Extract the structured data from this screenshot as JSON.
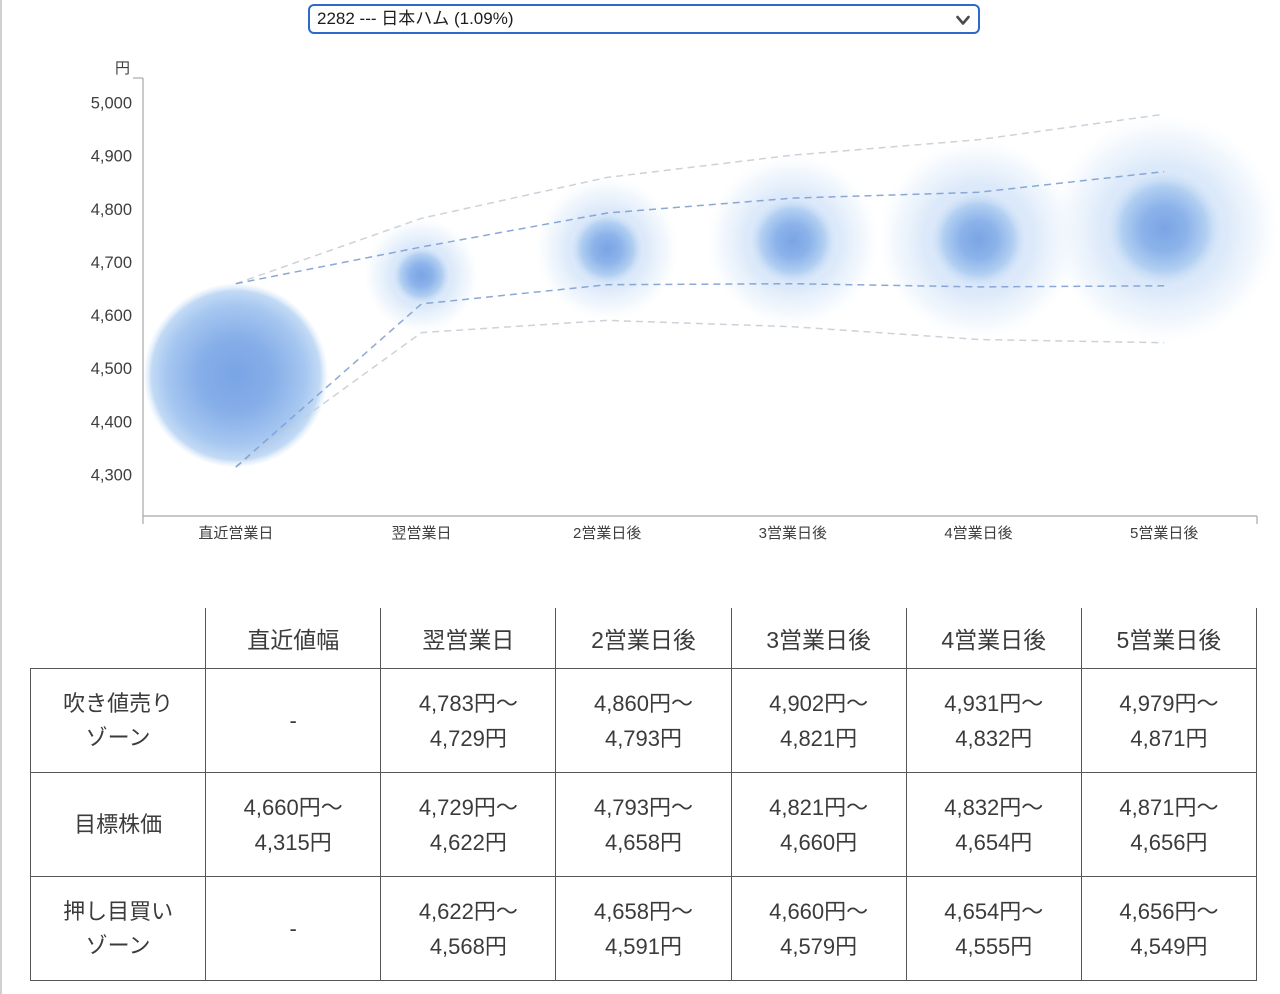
{
  "stock_selector": {
    "value": "2282 --- 日本ハム (1.09%)",
    "border_color": "#2e6ac9",
    "chevron_color": "#4a4a4a"
  },
  "chart_data": {
    "type": "bubble",
    "title": "",
    "y_axis": {
      "unit": "円",
      "min": 4300,
      "max": 5000,
      "ticks": [
        {
          "v": 5000,
          "label": "5,000"
        },
        {
          "v": 4900,
          "label": "4,900"
        },
        {
          "v": 4800,
          "label": "4,800"
        },
        {
          "v": 4700,
          "label": "4,700"
        },
        {
          "v": 4600,
          "label": "4,600"
        },
        {
          "v": 4500,
          "label": "4,500"
        },
        {
          "v": 4400,
          "label": "4,400"
        },
        {
          "v": 4300,
          "label": "4,300"
        }
      ]
    },
    "categories": [
      "直近営業日",
      "翌営業日",
      "2営業日後",
      "3営業日後",
      "4営業日後",
      "5営業日後"
    ],
    "lines": {
      "zone_high": [
        null,
        4783,
        4860,
        4902,
        4931,
        4979
      ],
      "target_high": [
        4660,
        4729,
        4793,
        4821,
        4832,
        4871
      ],
      "target_low": [
        4315,
        4622,
        4658,
        4660,
        4654,
        4656
      ],
      "zone_low": [
        null,
        4568,
        4591,
        4579,
        4555,
        4549
      ]
    },
    "grid": false,
    "legend": false,
    "colors": {
      "axis": "#a8a8a8",
      "target_dash_line": "#7e9ed2",
      "zone_dash_line": "#c7cdd6",
      "bubble_center": "#79a5e5",
      "bubble_mid": "#8cb3ea",
      "bubble_rim": "#c2daf5",
      "halo": "#d6e5f9"
    }
  },
  "table": {
    "headers": [
      "",
      "直近値幅",
      "翌営業日",
      "2営業日後",
      "3営業日後",
      "4営業日後",
      "5営業日後"
    ],
    "rows": [
      {
        "label_lines": [
          "吹き値売り",
          "ゾーン"
        ],
        "cells": [
          [
            "-"
          ],
          [
            "4,783円〜",
            "4,729円"
          ],
          [
            "4,860円〜",
            "4,793円"
          ],
          [
            "4,902円〜",
            "4,821円"
          ],
          [
            "4,931円〜",
            "4,832円"
          ],
          [
            "4,979円〜",
            "4,871円"
          ]
        ]
      },
      {
        "label_lines": [
          "目標株価"
        ],
        "cells": [
          [
            "4,660円〜",
            "4,315円"
          ],
          [
            "4,729円〜",
            "4,622円"
          ],
          [
            "4,793円〜",
            "4,658円"
          ],
          [
            "4,821円〜",
            "4,660円"
          ],
          [
            "4,832円〜",
            "4,654円"
          ],
          [
            "4,871円〜",
            "4,656円"
          ]
        ]
      },
      {
        "label_lines": [
          "押し目買い",
          "ゾーン"
        ],
        "cells": [
          [
            "-"
          ],
          [
            "4,622円〜",
            "4,568円"
          ],
          [
            "4,658円〜",
            "4,591円"
          ],
          [
            "4,660円〜",
            "4,579円"
          ],
          [
            "4,654円〜",
            "4,555円"
          ],
          [
            "4,656円〜",
            "4,549円"
          ]
        ]
      }
    ]
  }
}
